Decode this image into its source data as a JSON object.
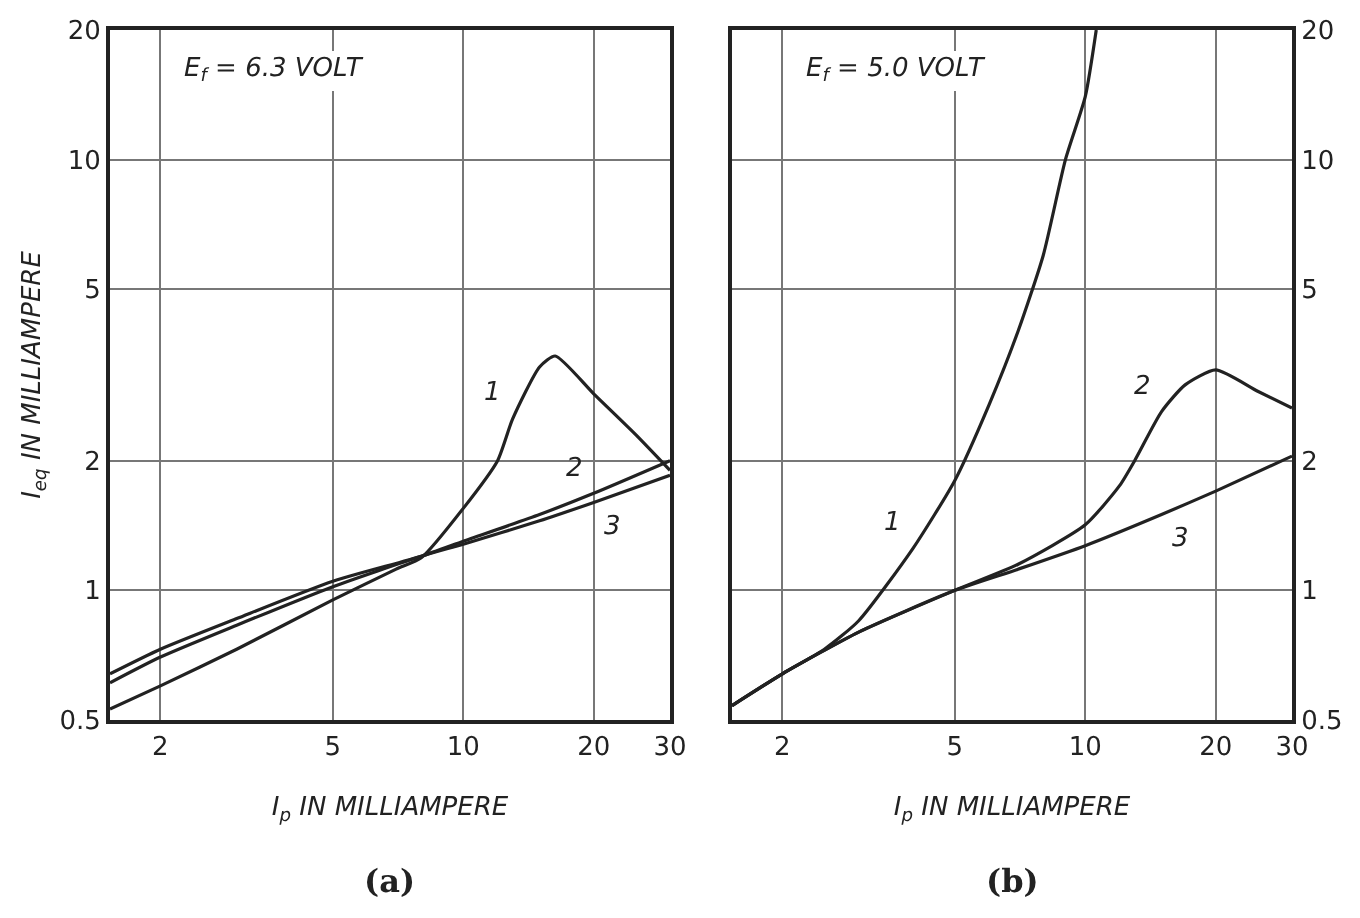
{
  "chart_data": [
    {
      "type": "line",
      "log": "xy",
      "grid": true,
      "xlabel": "I$_{p}$ IN MILLIAMPERE",
      "ylabel": "I$_{eq}$ IN MILLIAMPERE",
      "xlim": [
        1.53,
        30
      ],
      "ylim": [
        0.5,
        20
      ],
      "xticks": [
        2,
        5,
        10,
        20,
        30
      ],
      "yticks": [
        0.5,
        1,
        2,
        5,
        10,
        20
      ],
      "series": [
        {
          "color": "#222222",
          "x": [
            1.53,
            2,
            3,
            5,
            7,
            8,
            10,
            12,
            13,
            15,
            16.3,
            20,
            25,
            30
          ],
          "values": [
            0.53,
            0.6,
            0.73,
            0.95,
            1.12,
            1.19,
            1.55,
            2.0,
            2.5,
            3.3,
            3.5,
            2.86,
            2.3,
            1.9
          ]
        },
        {
          "color": "#222222",
          "x": [
            1.53,
            2,
            3,
            5,
            8,
            10,
            15,
            20,
            30
          ],
          "values": [
            0.64,
            0.73,
            0.86,
            1.05,
            1.2,
            1.3,
            1.5,
            1.68,
            2.0
          ]
        },
        {
          "color": "#222222",
          "x": [
            1.53,
            2,
            3,
            5,
            8,
            10,
            15,
            20,
            30
          ],
          "values": [
            0.61,
            0.7,
            0.83,
            1.02,
            1.2,
            1.28,
            1.45,
            1.6,
            1.85
          ]
        }
      ],
      "annotations": [
        "E$_{f}$ = 6.3 VOLT",
        "(a)",
        {
          "text": "1",
          "x": 13,
          "y": 2.5
        },
        {
          "text": "2",
          "x": 20,
          "y": 1.68
        },
        {
          "text": "3",
          "x": 20,
          "y": 1.6
        }
      ]
    },
    {
      "type": "line",
      "log": "xy",
      "grid": true,
      "xlabel": "I$_{p}$ IN MILLIAMPERE",
      "xlim": [
        1.53,
        30
      ],
      "ylim": [
        0.5,
        20
      ],
      "xticks": [
        2,
        5,
        10,
        20,
        30
      ],
      "yticks": [
        0.5,
        1,
        2,
        5,
        10,
        20
      ],
      "series": [
        {
          "color": "#222222",
          "x": [
            1.53,
            2,
            2.5,
            3,
            4,
            5,
            6,
            7,
            8,
            9,
            10,
            10.6
          ],
          "values": [
            0.54,
            0.64,
            0.73,
            0.85,
            1.25,
            1.8,
            2.7,
            4.0,
            6.0,
            10,
            14,
            20
          ]
        },
        {
          "color": "#222222",
          "x": [
            1.53,
            2,
            3,
            5,
            7,
            10,
            12,
            13,
            15,
            17,
            20,
            25,
            30
          ],
          "values": [
            0.54,
            0.64,
            0.8,
            1.0,
            1.15,
            1.42,
            1.75,
            2.0,
            2.6,
            3.0,
            3.25,
            2.9,
            2.65
          ]
        },
        {
          "color": "#222222",
          "x": [
            1.53,
            2,
            3,
            5,
            7,
            10,
            15,
            20,
            30
          ],
          "values": [
            0.54,
            0.64,
            0.8,
            1.0,
            1.12,
            1.27,
            1.5,
            1.7,
            2.05
          ]
        }
      ],
      "annotations": [
        "E$_{f}$ = 5.0 VOLT",
        "(b)",
        {
          "text": "1",
          "x": 4,
          "y": 1.25
        },
        {
          "text": "2",
          "x": 15,
          "y": 2.6
        },
        {
          "text": "3",
          "x": 15,
          "y": 1.5
        }
      ]
    }
  ]
}
